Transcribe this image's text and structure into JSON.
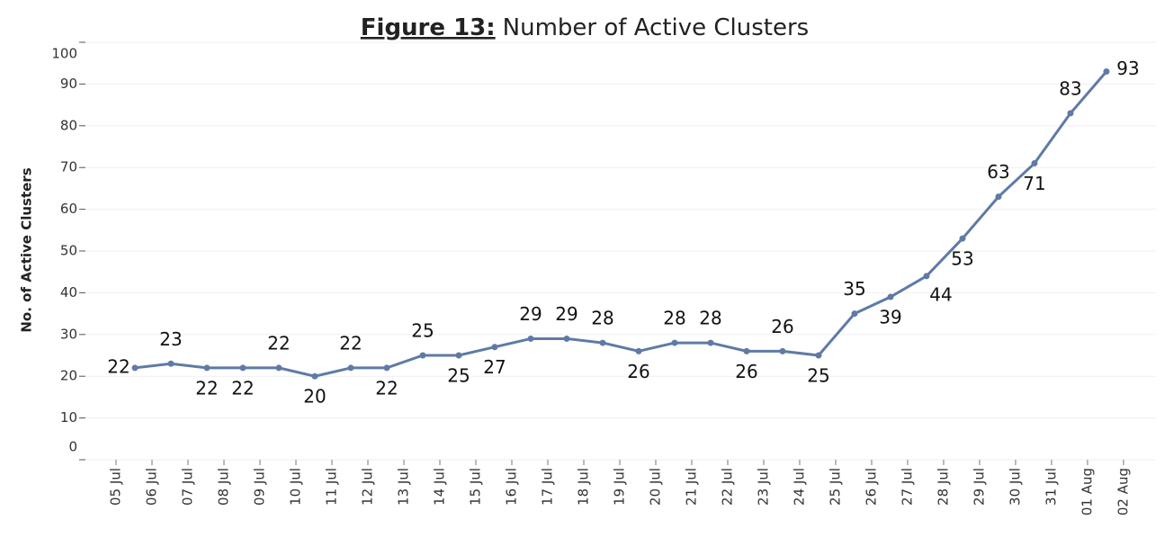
{
  "chart_data": {
    "type": "line",
    "title_label": "Figure 13:",
    "title": "Number of Active Clusters",
    "y_label": "No. of Active Clusters",
    "categories": [
      "05 Jul",
      "06 Jul",
      "07 Jul",
      "08 Jul",
      "09 Jul",
      "10 Jul",
      "11 Jul",
      "12 Jul",
      "13 Jul",
      "14 Jul",
      "15 Jul",
      "16 Jul",
      "17 Jul",
      "18 Jul",
      "19 Jul",
      "20 Jul",
      "21 Jul",
      "22 Jul",
      "23 Jul",
      "24 Jul",
      "25 Jul",
      "26 Jul",
      "27 Jul",
      "28 Jul",
      "29 Jul",
      "30 Jul",
      "31 Jul",
      "01 Aug",
      "02 Aug"
    ],
    "series": [
      {
        "name": "Active Clusters",
        "color": "#5f7aa6",
        "values": [
          22,
          23,
          22,
          22,
          22,
          20,
          22,
          22,
          25,
          25,
          27,
          29,
          29,
          28,
          26,
          28,
          28,
          26,
          26,
          25,
          35,
          39,
          44,
          53,
          63,
          71,
          83,
          93,
          null
        ]
      }
    ],
    "ylim": [
      0,
      100
    ],
    "yticks": [
      0,
      10,
      20,
      30,
      40,
      50,
      60,
      70,
      80,
      90,
      100
    ],
    "grid": true
  }
}
